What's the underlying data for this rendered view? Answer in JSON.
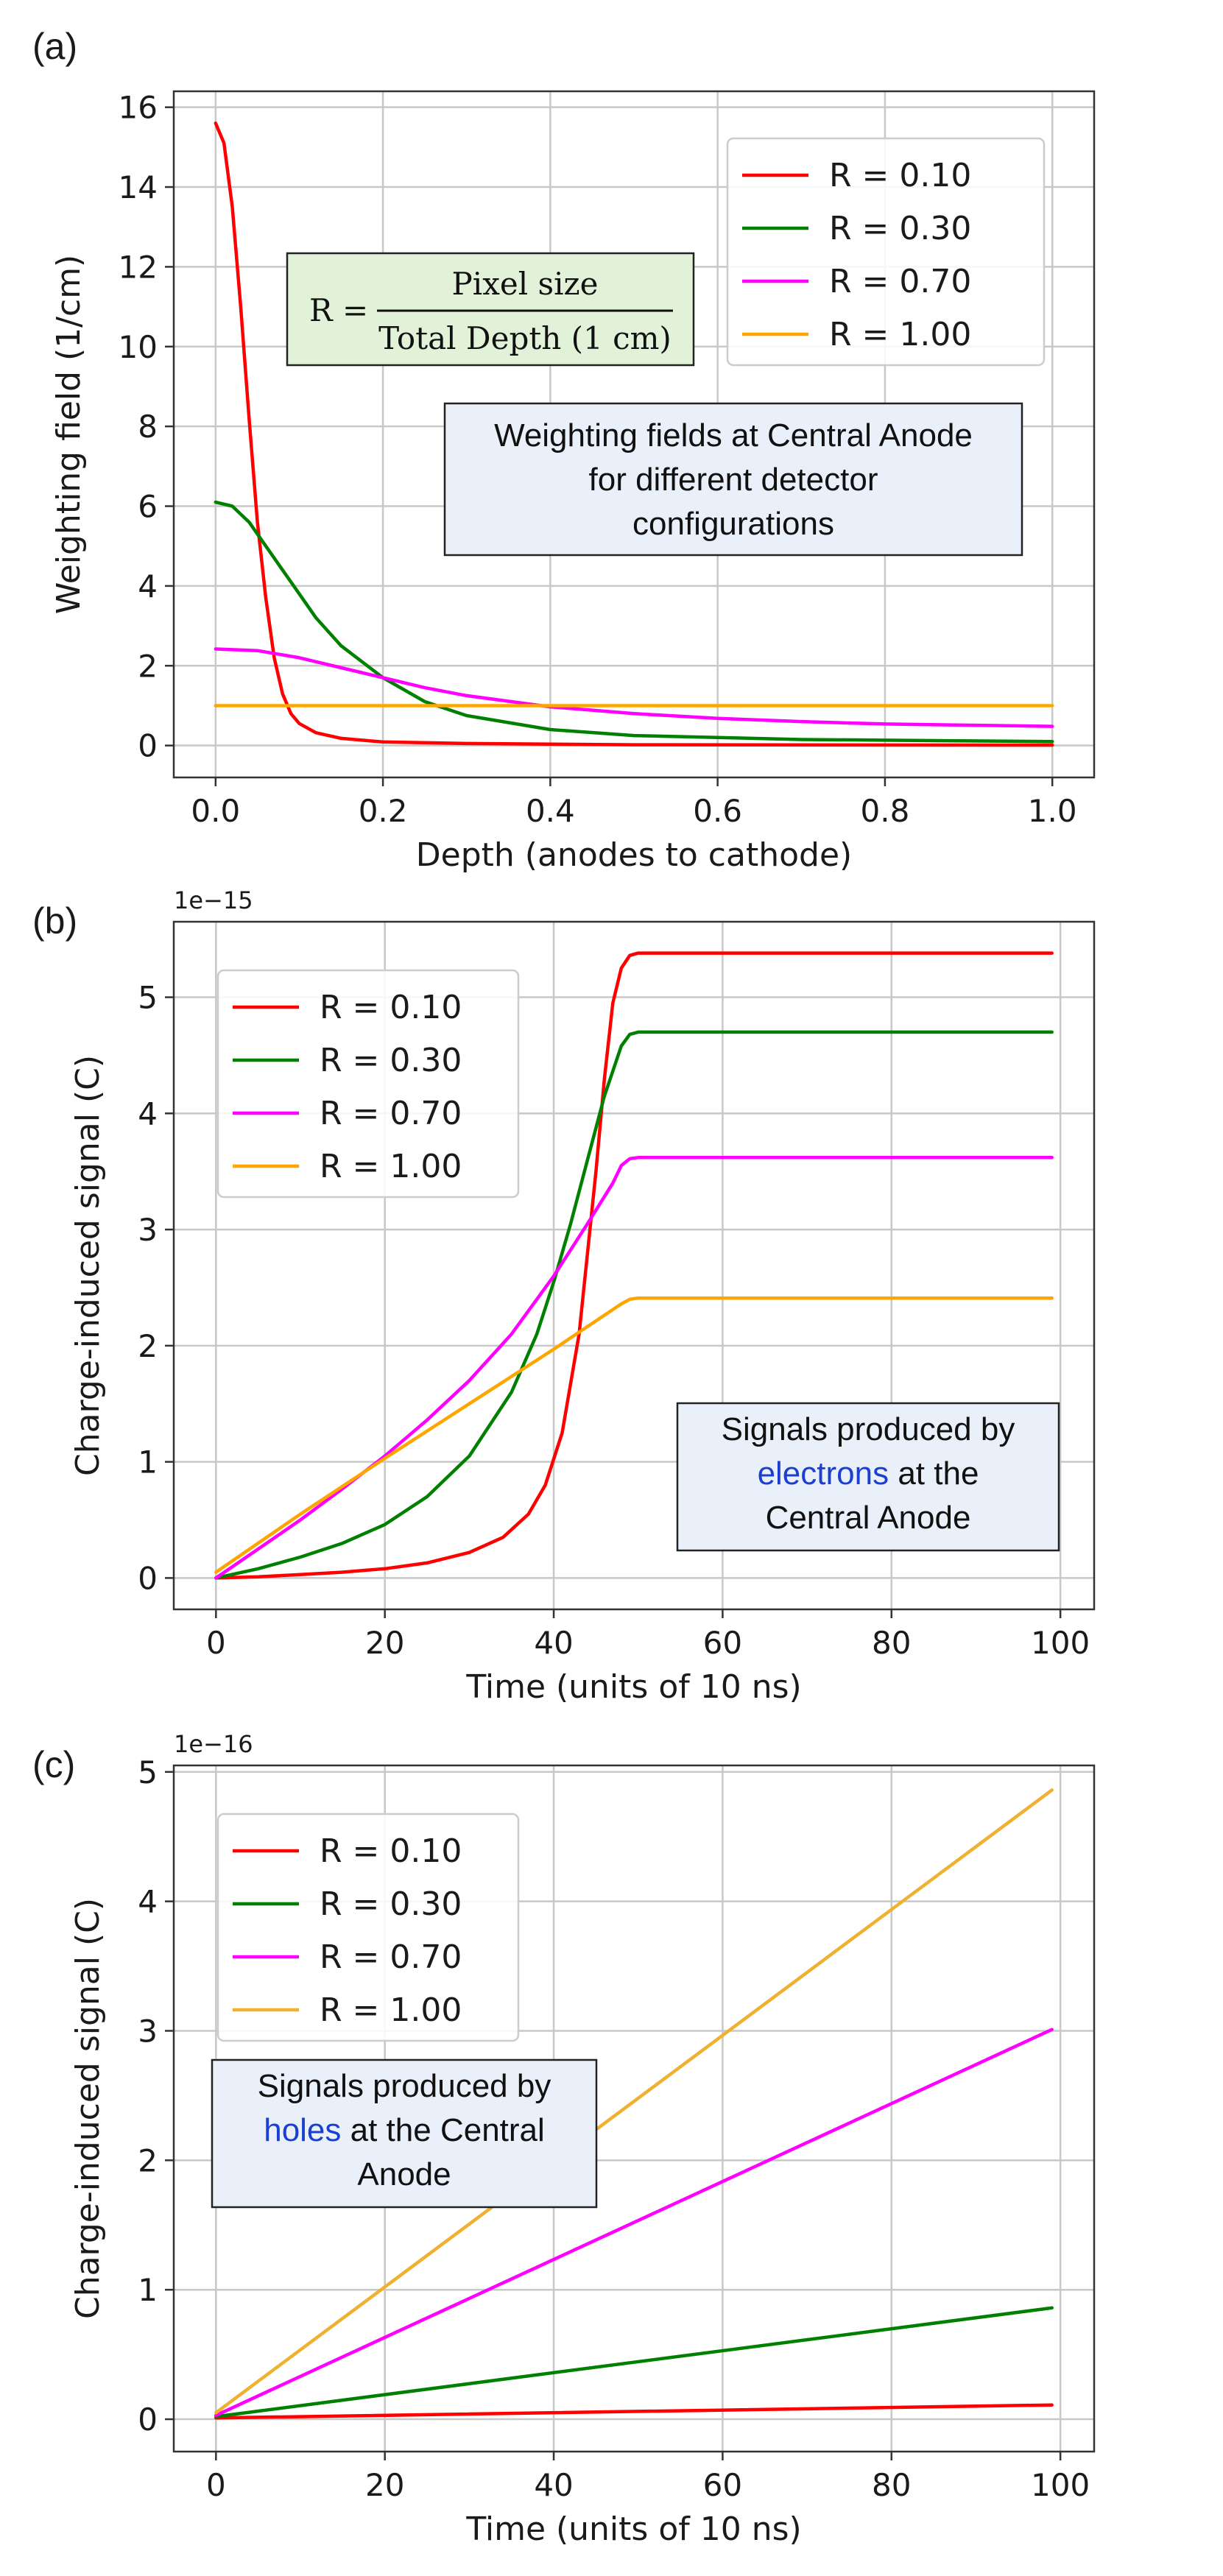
{
  "chart_data": [
    {
      "type": "line",
      "panel_label": "(a)",
      "xlabel": "Depth (anodes to cathode)",
      "ylabel": "Weighting field (1/cm)",
      "xlim": [
        -0.05,
        1.05
      ],
      "ylim": [
        -0.8,
        16.4
      ],
      "xticks": [
        0.0,
        0.2,
        0.4,
        0.6,
        0.8,
        1.0
      ],
      "xtick_labels": [
        "0.0",
        "0.2",
        "0.4",
        "0.6",
        "0.8",
        "1.0"
      ],
      "yticks": [
        0,
        2,
        4,
        6,
        8,
        10,
        12,
        14,
        16
      ],
      "ytick_labels": [
        "0",
        "2",
        "4",
        "6",
        "8",
        "10",
        "12",
        "14",
        "16"
      ],
      "grid": true,
      "legend_position": "top-right",
      "series": [
        {
          "name": "R = 0.10",
          "color": "#ff0000",
          "x": [
            0,
            0.01,
            0.02,
            0.03,
            0.04,
            0.05,
            0.06,
            0.07,
            0.08,
            0.09,
            0.1,
            0.12,
            0.15,
            0.2,
            0.3,
            0.5,
            1.0
          ],
          "y": [
            15.6,
            15.1,
            13.5,
            11.0,
            8.2,
            5.6,
            3.7,
            2.2,
            1.3,
            0.8,
            0.55,
            0.32,
            0.18,
            0.09,
            0.05,
            0.02,
            0.01
          ]
        },
        {
          "name": "R = 0.30",
          "color": "#008000",
          "x": [
            0,
            0.02,
            0.04,
            0.06,
            0.08,
            0.1,
            0.12,
            0.15,
            0.2,
            0.25,
            0.3,
            0.4,
            0.5,
            0.7,
            1.0
          ],
          "y": [
            6.1,
            6.0,
            5.6,
            5.0,
            4.4,
            3.8,
            3.2,
            2.5,
            1.7,
            1.1,
            0.75,
            0.4,
            0.25,
            0.15,
            0.1
          ]
        },
        {
          "name": "R = 0.70",
          "color": "#ff00ff",
          "x": [
            0,
            0.05,
            0.1,
            0.15,
            0.2,
            0.25,
            0.3,
            0.4,
            0.5,
            0.6,
            0.7,
            0.8,
            1.0
          ],
          "y": [
            2.42,
            2.38,
            2.2,
            1.95,
            1.7,
            1.45,
            1.25,
            0.97,
            0.8,
            0.68,
            0.6,
            0.54,
            0.48
          ]
        },
        {
          "name": "R = 1.00",
          "color": "#ffa500",
          "x": [
            0,
            1.0
          ],
          "y": [
            1.0,
            1.0
          ]
        }
      ],
      "annotation_text": [
        "Weighting fields at Central Anode",
        "for different detector",
        "configurations"
      ],
      "formula": {
        "lhs": "R =",
        "numerator": "Pixel size",
        "denominator": "Total Depth (1 cm)"
      }
    },
    {
      "type": "line",
      "panel_label": "(b)",
      "xlabel": "Time (units of 10 ns)",
      "ylabel": "Charge-induced signal (C)",
      "offset_text": "1e−15",
      "xlim": [
        -5,
        104
      ],
      "ylim": [
        -0.27,
        5.65
      ],
      "xticks": [
        0,
        20,
        40,
        60,
        80,
        100
      ],
      "xtick_labels": [
        "0",
        "20",
        "40",
        "60",
        "80",
        "100"
      ],
      "yticks": [
        0,
        1,
        2,
        3,
        4,
        5
      ],
      "ytick_labels": [
        "0",
        "1",
        "2",
        "3",
        "4",
        "5"
      ],
      "grid": true,
      "legend_position": "top-left",
      "series": [
        {
          "name": "R = 0.10",
          "color": "#ff0000",
          "x": [
            0,
            5,
            10,
            15,
            20,
            25,
            30,
            34,
            37,
            39,
            41,
            43,
            45,
            46,
            47,
            48,
            49,
            50,
            55,
            99
          ],
          "y": [
            0,
            0.01,
            0.03,
            0.05,
            0.08,
            0.13,
            0.22,
            0.35,
            0.55,
            0.8,
            1.25,
            2.1,
            3.5,
            4.3,
            4.95,
            5.25,
            5.36,
            5.38,
            5.38,
            5.38
          ]
        },
        {
          "name": "R = 0.30",
          "color": "#008000",
          "x": [
            0,
            5,
            10,
            15,
            20,
            25,
            30,
            35,
            38,
            40,
            42,
            44,
            46,
            48,
            49,
            50,
            55,
            99
          ],
          "y": [
            0,
            0.08,
            0.18,
            0.3,
            0.46,
            0.7,
            1.05,
            1.6,
            2.1,
            2.55,
            3.05,
            3.6,
            4.15,
            4.58,
            4.68,
            4.7,
            4.7,
            4.7
          ]
        },
        {
          "name": "R = 0.70",
          "color": "#ff00ff",
          "x": [
            0,
            5,
            10,
            15,
            20,
            25,
            30,
            35,
            40,
            44,
            47,
            48,
            49,
            50,
            55,
            99
          ],
          "y": [
            0,
            0.25,
            0.5,
            0.77,
            1.05,
            1.36,
            1.7,
            2.1,
            2.6,
            3.05,
            3.4,
            3.55,
            3.61,
            3.62,
            3.62,
            3.62
          ]
        },
        {
          "name": "R = 1.00",
          "color": "#ffa500",
          "x": [
            0,
            10,
            20,
            30,
            40,
            48,
            49,
            50,
            55,
            99
          ],
          "y": [
            0.05,
            0.55,
            1.03,
            1.5,
            1.97,
            2.36,
            2.4,
            2.41,
            2.41,
            2.41
          ]
        }
      ],
      "annotation": {
        "line1": "Signals produced by",
        "line2_highlight": "electrons",
        "line2_rest": " at the",
        "line3": "Central Anode"
      }
    },
    {
      "type": "line",
      "panel_label": "(c)",
      "xlabel": "Time (units of 10 ns)",
      "ylabel": "Charge-induced signal (C)",
      "offset_text": "1e−16",
      "xlim": [
        -5,
        104
      ],
      "ylim": [
        -0.25,
        5.05
      ],
      "xticks": [
        0,
        20,
        40,
        60,
        80,
        100
      ],
      "xtick_labels": [
        "0",
        "20",
        "40",
        "60",
        "80",
        "100"
      ],
      "yticks": [
        0,
        1,
        2,
        3,
        4,
        5
      ],
      "ytick_labels": [
        "0",
        "1",
        "2",
        "3",
        "4",
        "5"
      ],
      "grid": true,
      "legend_position": "top-left",
      "series": [
        {
          "name": "R = 0.10",
          "color": "#ff0000",
          "x": [
            0,
            99
          ],
          "y": [
            0.01,
            0.11
          ]
        },
        {
          "name": "R = 0.30",
          "color": "#008000",
          "x": [
            0,
            99
          ],
          "y": [
            0.02,
            0.86
          ]
        },
        {
          "name": "R = 0.70",
          "color": "#ff00ff",
          "x": [
            0,
            99
          ],
          "y": [
            0.03,
            3.01
          ]
        },
        {
          "name": "R = 1.00",
          "color": "#f0b030",
          "x": [
            0,
            99
          ],
          "y": [
            0.05,
            4.86
          ]
        }
      ],
      "annotation": {
        "line1": "Signals produced by",
        "line2_highlight": "holes",
        "line2_rest": " at the Central",
        "line3": "Anode"
      }
    }
  ]
}
